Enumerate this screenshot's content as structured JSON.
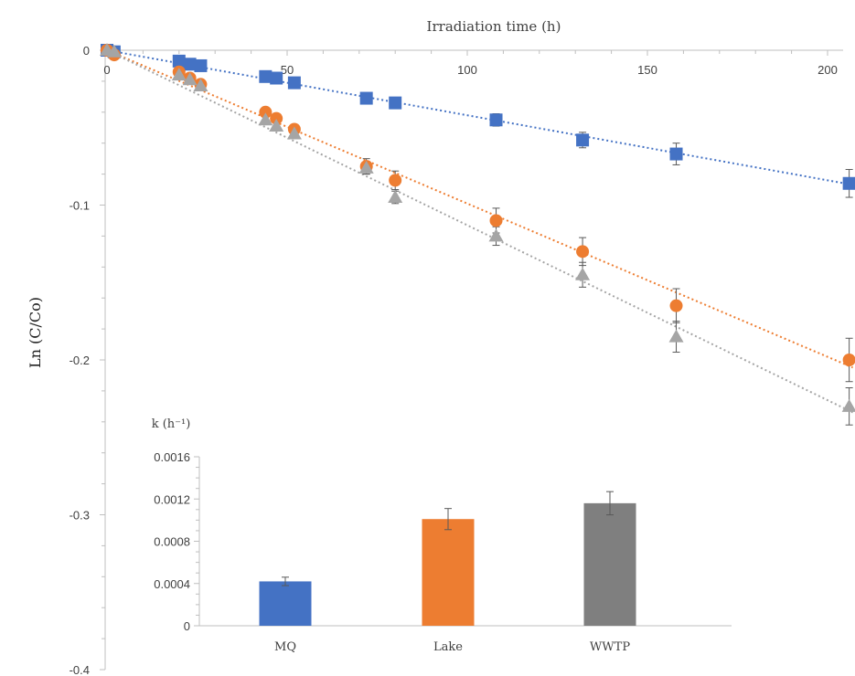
{
  "chart_data": [
    {
      "type": "scatter",
      "xlabel": "Irradiation time (h)",
      "ylabel": "Ln (C/Co)",
      "xlim": [
        -4,
        208
      ],
      "ylim": [
        -0.4,
        0
      ],
      "x_ticks": [
        0,
        50,
        100,
        150,
        200
      ],
      "x_tick_labels": [
        "0",
        "50",
        "100",
        "150",
        "200"
      ],
      "y_ticks": [
        0,
        -0.1,
        -0.2,
        -0.3,
        -0.4
      ],
      "y_tick_labels": [
        "0",
        "-0.1",
        "-0.2",
        "-0.3",
        "-0.4"
      ],
      "x_axis_position": "top",
      "grid": false,
      "trendlines": "dotted linear fit per series",
      "series": [
        {
          "marker": "square",
          "color": "#4472C4",
          "x": [
            0,
            2,
            20,
            23,
            26,
            44,
            47,
            52,
            72,
            80,
            108,
            132,
            158,
            206
          ],
          "y": [
            0,
            -0.001,
            -0.007,
            -0.009,
            -0.01,
            -0.017,
            -0.018,
            -0.021,
            -0.031,
            -0.034,
            -0.045,
            -0.058,
            -0.067,
            -0.086
          ],
          "error": [
            0,
            0,
            0,
            0,
            0,
            0,
            0,
            0,
            0,
            0,
            0.004,
            0.005,
            0.007,
            0.009
          ],
          "fit_slope": -0.00042
        },
        {
          "marker": "circle",
          "color": "#ED7D31",
          "x": [
            0,
            2,
            20,
            23,
            26,
            44,
            47,
            52,
            72,
            80,
            108,
            132,
            158,
            206
          ],
          "y": [
            0,
            -0.003,
            -0.014,
            -0.018,
            -0.022,
            -0.04,
            -0.044,
            -0.051,
            -0.075,
            -0.084,
            -0.11,
            -0.13,
            -0.165,
            -0.2
          ],
          "error": [
            0,
            0,
            0,
            0,
            0,
            0,
            0,
            0,
            0.005,
            0.006,
            0.008,
            0.009,
            0.011,
            0.014
          ],
          "fit_slope": -0.00099
        },
        {
          "marker": "triangle",
          "color": "#A5A5A5",
          "x": [
            0,
            2,
            20,
            23,
            26,
            44,
            47,
            52,
            72,
            80,
            108,
            132,
            158,
            206
          ],
          "y": [
            0,
            -0.001,
            -0.016,
            -0.019,
            -0.023,
            -0.045,
            -0.049,
            -0.054,
            -0.076,
            -0.095,
            -0.12,
            -0.145,
            -0.185,
            -0.23
          ],
          "error": [
            0,
            0,
            0,
            0,
            0,
            0,
            0,
            0,
            0.004,
            0.004,
            0.006,
            0.008,
            0.01,
            0.012
          ],
          "fit_slope": -0.00113
        }
      ]
    },
    {
      "type": "bar",
      "title": "k (h⁻¹)",
      "categories": [
        "MQ",
        "Lake",
        "WWTP"
      ],
      "values": [
        0.00042,
        0.00101,
        0.00116
      ],
      "errors": [
        4e-05,
        0.0001,
        0.00011
      ],
      "colors": [
        "#4472C4",
        "#ED7D31",
        "#7F7F7F"
      ],
      "ylim": [
        0,
        0.0016
      ],
      "y_ticks": [
        0,
        0.0004,
        0.0008,
        0.0012,
        0.0016
      ],
      "y_tick_labels": [
        "0",
        "0.0004",
        "0.0008",
        "0.0012",
        "0.0016"
      ],
      "grid": false
    }
  ]
}
